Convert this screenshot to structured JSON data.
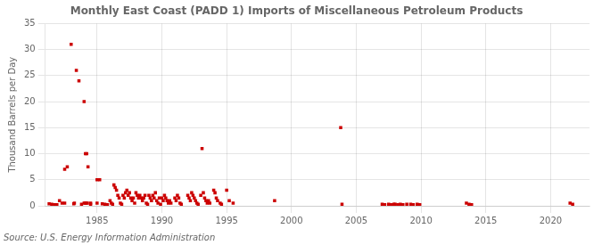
{
  "chart_data": {
    "type": "scatter",
    "title": "Monthly East Coast (PADD 1) Imports of Miscellaneous Petroleum Products",
    "y_label": "Thousand Barrels per Day",
    "annotations": [
      "Source: U.S. Energy Information Administration"
    ],
    "color": "#cc0000",
    "marker": "square",
    "grid": true,
    "xlim": [
      1981.0,
      2023.0
    ],
    "ylim": [
      0,
      35
    ],
    "xticks": [
      1985,
      1990,
      1995,
      2000,
      2005,
      2010,
      2015,
      2020
    ],
    "yticks": [
      0,
      5,
      10,
      15,
      20,
      25,
      30,
      35
    ],
    "x": [
      1981.3,
      1981.5,
      1981.7,
      1981.9,
      1982.1,
      1982.3,
      1982.5,
      1982.7,
      1983.0,
      1983.2,
      1983.4,
      1983.6,
      1983.8,
      1984.0,
      1984.1,
      1984.2,
      1984.3,
      1984.5,
      1985.0,
      1985.2,
      1985.4,
      1985.6,
      1985.8,
      1986.0,
      1986.1,
      1986.2,
      1986.3,
      1986.4,
      1986.5,
      1986.6,
      1986.7,
      1986.8,
      1986.9,
      1987.0,
      1987.1,
      1987.2,
      1987.3,
      1987.4,
      1987.5,
      1987.6,
      1987.7,
      1987.8,
      1987.9,
      1988.0,
      1988.1,
      1988.2,
      1988.3,
      1988.4,
      1988.5,
      1988.6,
      1988.7,
      1988.8,
      1988.9,
      1989.0,
      1989.1,
      1989.2,
      1989.3,
      1989.4,
      1989.5,
      1989.6,
      1989.7,
      1989.8,
      1989.9,
      1990.0,
      1990.1,
      1990.2,
      1990.3,
      1990.4,
      1990.5,
      1990.6,
      1990.7,
      1991.0,
      1991.1,
      1991.2,
      1991.3,
      1991.4,
      1991.5,
      1992.0,
      1992.1,
      1992.2,
      1992.3,
      1992.4,
      1992.5,
      1992.6,
      1992.7,
      1992.8,
      1993.0,
      1993.1,
      1993.2,
      1993.3,
      1993.4,
      1993.5,
      1993.6,
      1993.7,
      1994.0,
      1994.1,
      1994.2,
      1994.3,
      1994.5,
      1994.6,
      1995.0,
      1995.2,
      1995.5,
      1998.7,
      2003.8,
      2003.9,
      2007.0,
      2007.2,
      2007.5,
      2007.7,
      2007.9,
      2008.0,
      2008.2,
      2008.4,
      2008.6,
      2008.9,
      2009.2,
      2009.4,
      2009.7,
      2009.9,
      2013.5,
      2013.7,
      2013.9,
      2021.5,
      2021.7,
      1982.5,
      1983.25,
      1984.0,
      1984.08,
      1984.17,
      1984.25,
      1984.5,
      1985.0
    ],
    "values": [
      0.4,
      0.3,
      0.2,
      0.2,
      1.0,
      0.5,
      7.0,
      7.5,
      31.0,
      0.4,
      26.0,
      24.0,
      0.3,
      20.0,
      10.0,
      10.0,
      7.5,
      0.3,
      5.0,
      5.0,
      0.4,
      0.3,
      0.2,
      1.0,
      0.5,
      0.3,
      4.0,
      3.5,
      3.0,
      2.0,
      1.5,
      0.5,
      0.3,
      2.0,
      1.5,
      2.5,
      3.0,
      2.0,
      2.5,
      1.5,
      1.0,
      1.5,
      0.5,
      2.5,
      2.0,
      1.5,
      2.0,
      1.5,
      1.0,
      1.5,
      2.0,
      0.5,
      0.3,
      2.0,
      1.5,
      1.0,
      2.0,
      1.5,
      2.5,
      1.0,
      0.5,
      1.5,
      0.3,
      1.5,
      1.0,
      2.0,
      1.5,
      1.0,
      0.5,
      1.0,
      0.5,
      1.5,
      1.0,
      2.0,
      1.5,
      0.5,
      0.3,
      2.0,
      1.5,
      1.0,
      2.5,
      2.0,
      1.5,
      1.0,
      0.5,
      0.3,
      2.0,
      11.0,
      2.5,
      1.5,
      1.0,
      0.5,
      1.0,
      0.5,
      3.0,
      2.5,
      1.5,
      1.0,
      0.5,
      0.3,
      3.0,
      1.0,
      0.5,
      1.0,
      15.0,
      0.3,
      0.3,
      0.2,
      0.3,
      0.2,
      0.3,
      0.3,
      0.2,
      0.3,
      0.2,
      0.3,
      0.3,
      0.2,
      0.3,
      0.2,
      0.5,
      0.3,
      0.2,
      0.5,
      0.3,
      0.5,
      0.5,
      0.5,
      0.5,
      0.5,
      0.5,
      0.5,
      0.5
    ]
  }
}
